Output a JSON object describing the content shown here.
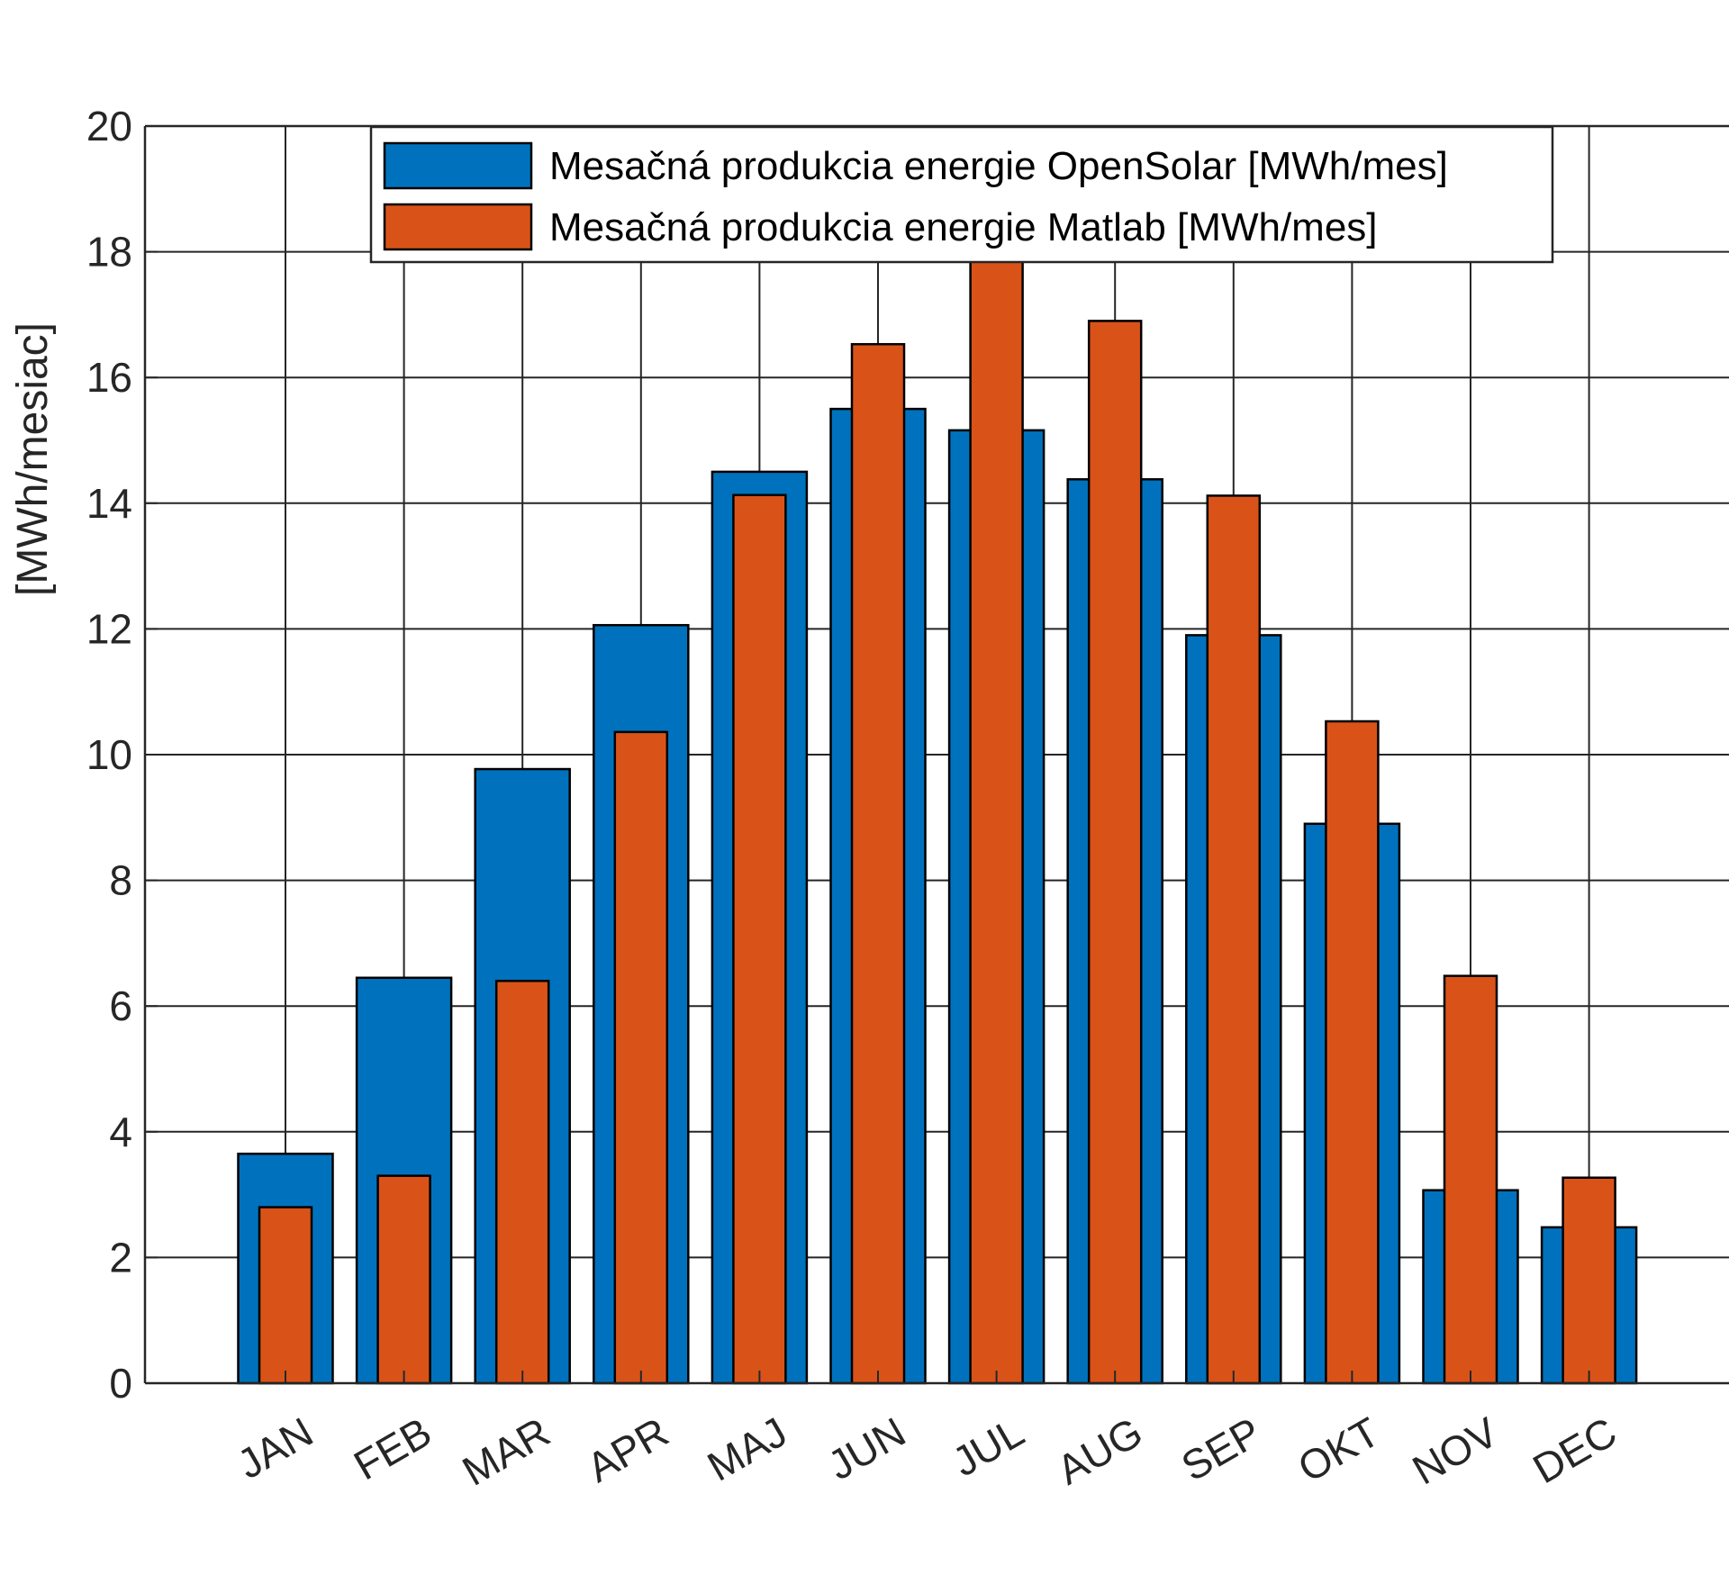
{
  "chart_data": {
    "type": "bar",
    "overlaid": true,
    "categories": [
      "JAN",
      "FEB",
      "MAR",
      "APR",
      "MAJ",
      "JUN",
      "JUL",
      "AUG",
      "SEP",
      "OKT",
      "NOV",
      "DEC"
    ],
    "series": [
      {
        "name": "Mesačná produkcia energie OpenSolar [MWh/mes]",
        "color": "#0072BD",
        "values": [
          3.65,
          6.45,
          9.77,
          12.06,
          14.5,
          15.5,
          15.16,
          14.38,
          11.9,
          8.9,
          3.07,
          2.48
        ]
      },
      {
        "name": "Mesačná produkcia energie Matlab [MWh/mes]",
        "color": "#D95319",
        "values": [
          2.8,
          3.3,
          6.4,
          10.36,
          14.13,
          16.53,
          18.0,
          16.9,
          14.12,
          10.53,
          6.48,
          3.27
        ]
      }
    ],
    "ylabel": "[MWh/mesiac]",
    "xlabel": "",
    "title": "",
    "ylim": [
      0,
      20
    ],
    "yticks": [
      0,
      2,
      4,
      6,
      8,
      10,
      12,
      14,
      16,
      18,
      20
    ],
    "grid": true,
    "legend_position": "top"
  }
}
